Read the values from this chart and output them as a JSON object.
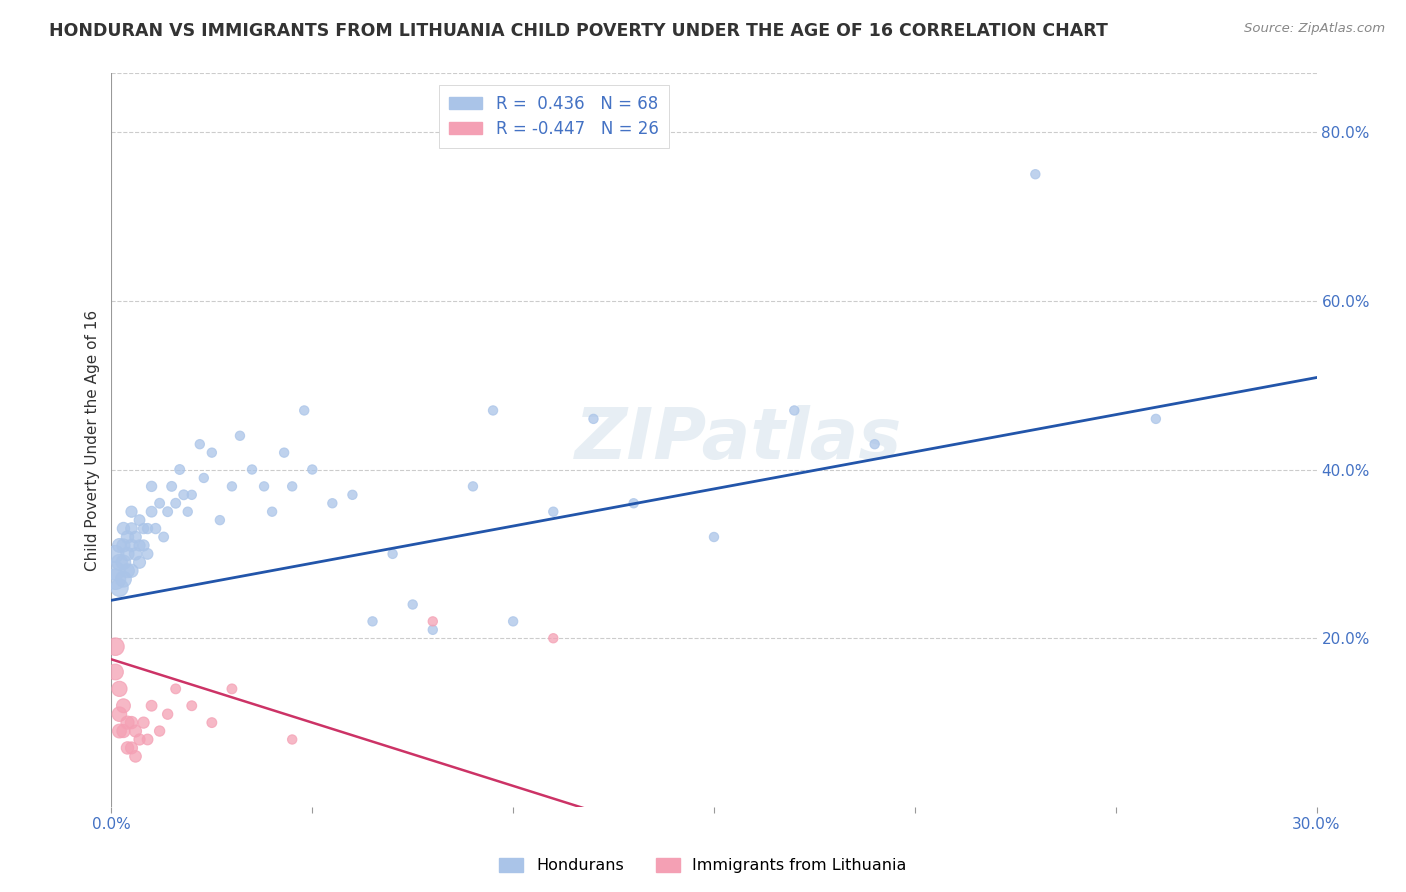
{
  "title": "HONDURAN VS IMMIGRANTS FROM LITHUANIA CHILD POVERTY UNDER THE AGE OF 16 CORRELATION CHART",
  "source": "Source: ZipAtlas.com",
  "ylabel": "Child Poverty Under the Age of 16",
  "xlim": [
    0.0,
    0.3
  ],
  "ylim": [
    0.0,
    0.87
  ],
  "xticks": [
    0.0,
    0.05,
    0.1,
    0.15,
    0.2,
    0.25,
    0.3
  ],
  "xticklabels": [
    "0.0%",
    "",
    "",
    "",
    "",
    "",
    "30.0%"
  ],
  "yticks_right": [
    0.2,
    0.4,
    0.6,
    0.8
  ],
  "ytick_labels_right": [
    "20.0%",
    "40.0%",
    "60.0%",
    "80.0%"
  ],
  "watermark": "ZIPatlas",
  "blue_color": "#aac4e8",
  "pink_color": "#f4a0b4",
  "blue_line_color": "#2255aa",
  "pink_line_color": "#cc3366",
  "blue_intercept": 0.245,
  "blue_slope": 0.88,
  "pink_intercept": 0.175,
  "pink_slope": -1.5,
  "hondurans_x": [
    0.001,
    0.001,
    0.001,
    0.002,
    0.002,
    0.002,
    0.003,
    0.003,
    0.003,
    0.003,
    0.004,
    0.004,
    0.004,
    0.005,
    0.005,
    0.005,
    0.005,
    0.006,
    0.006,
    0.007,
    0.007,
    0.007,
    0.008,
    0.008,
    0.009,
    0.009,
    0.01,
    0.01,
    0.011,
    0.012,
    0.013,
    0.014,
    0.015,
    0.016,
    0.017,
    0.018,
    0.019,
    0.02,
    0.022,
    0.023,
    0.025,
    0.027,
    0.03,
    0.032,
    0.035,
    0.038,
    0.04,
    0.043,
    0.045,
    0.048,
    0.05,
    0.055,
    0.06,
    0.065,
    0.07,
    0.075,
    0.08,
    0.09,
    0.095,
    0.1,
    0.11,
    0.12,
    0.13,
    0.15,
    0.17,
    0.19,
    0.23,
    0.26
  ],
  "hondurans_y": [
    0.27,
    0.28,
    0.3,
    0.26,
    0.29,
    0.31,
    0.27,
    0.29,
    0.31,
    0.33,
    0.28,
    0.3,
    0.32,
    0.28,
    0.31,
    0.33,
    0.35,
    0.3,
    0.32,
    0.29,
    0.31,
    0.34,
    0.31,
    0.33,
    0.3,
    0.33,
    0.35,
    0.38,
    0.33,
    0.36,
    0.32,
    0.35,
    0.38,
    0.36,
    0.4,
    0.37,
    0.35,
    0.37,
    0.43,
    0.39,
    0.42,
    0.34,
    0.38,
    0.44,
    0.4,
    0.38,
    0.35,
    0.42,
    0.38,
    0.47,
    0.4,
    0.36,
    0.37,
    0.22,
    0.3,
    0.24,
    0.21,
    0.38,
    0.47,
    0.22,
    0.35,
    0.46,
    0.36,
    0.32,
    0.47,
    0.43,
    0.75,
    0.46
  ],
  "hondurans_size": [
    220,
    180,
    150,
    160,
    130,
    100,
    130,
    110,
    90,
    80,
    100,
    90,
    80,
    90,
    80,
    70,
    65,
    80,
    70,
    75,
    65,
    60,
    65,
    55,
    60,
    55,
    60,
    55,
    55,
    50,
    50,
    50,
    50,
    50,
    50,
    50,
    45,
    45,
    45,
    45,
    45,
    45,
    45,
    45,
    45,
    45,
    45,
    45,
    45,
    45,
    45,
    45,
    45,
    45,
    45,
    45,
    45,
    45,
    45,
    45,
    45,
    45,
    45,
    45,
    45,
    45,
    45,
    45
  ],
  "lithuania_x": [
    0.001,
    0.001,
    0.002,
    0.002,
    0.002,
    0.003,
    0.003,
    0.004,
    0.004,
    0.005,
    0.005,
    0.006,
    0.006,
    0.007,
    0.008,
    0.009,
    0.01,
    0.012,
    0.014,
    0.016,
    0.02,
    0.025,
    0.03,
    0.045,
    0.08,
    0.11
  ],
  "lithuania_y": [
    0.19,
    0.16,
    0.14,
    0.11,
    0.09,
    0.12,
    0.09,
    0.1,
    0.07,
    0.1,
    0.07,
    0.09,
    0.06,
    0.08,
    0.1,
    0.08,
    0.12,
    0.09,
    0.11,
    0.14,
    0.12,
    0.1,
    0.14,
    0.08,
    0.22,
    0.2
  ],
  "lithuania_size": [
    160,
    130,
    120,
    110,
    100,
    100,
    90,
    90,
    80,
    80,
    75,
    75,
    70,
    65,
    65,
    60,
    60,
    55,
    55,
    50,
    50,
    50,
    50,
    45,
    45,
    45
  ]
}
